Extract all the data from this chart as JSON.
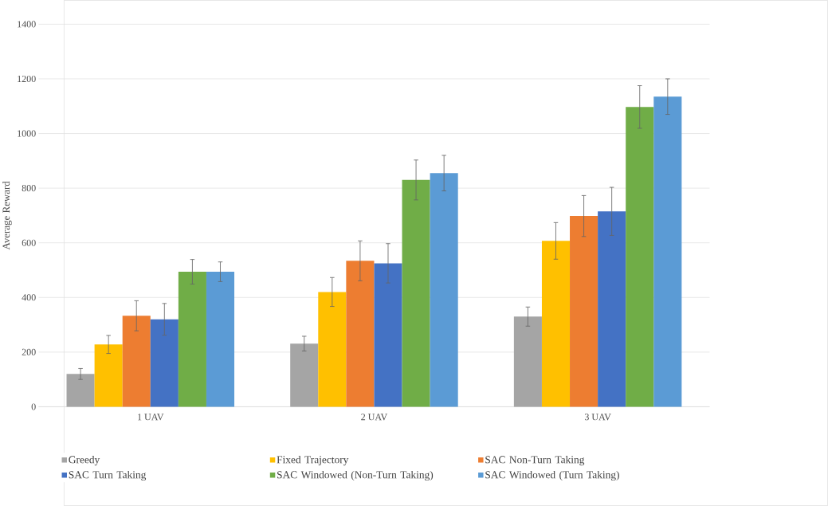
{
  "chart_data": {
    "type": "bar",
    "ylabel": "Average Reward",
    "categories": [
      "1 UAV",
      "2 UAV",
      "3 UAV"
    ],
    "series": [
      {
        "name": "Greedy",
        "color": "#a5a5a5",
        "values": [
          120,
          231,
          330
        ],
        "errors": [
          20,
          27,
          35
        ]
      },
      {
        "name": "Fixed Trajectory",
        "color": "#ffc000",
        "values": [
          228,
          420,
          607
        ],
        "errors": [
          33,
          53,
          67
        ]
      },
      {
        "name": "SAC Non-Turn Taking",
        "color": "#ed7d31",
        "values": [
          333,
          534,
          698
        ],
        "errors": [
          55,
          73,
          75
        ]
      },
      {
        "name": "SAC Turn Taking",
        "color": "#4472c4",
        "values": [
          320,
          525,
          715
        ],
        "errors": [
          58,
          72,
          88
        ]
      },
      {
        "name": "SAC Windowed (Non-Turn Taking)",
        "color": "#70ad47",
        "values": [
          494,
          830,
          1097
        ],
        "errors": [
          45,
          73,
          78
        ]
      },
      {
        "name": "SAC Windowed (Turn Taking)",
        "color": "#5b9bd5",
        "values": [
          494,
          855,
          1135
        ],
        "errors": [
          36,
          65,
          65
        ]
      }
    ],
    "ylim": [
      0,
      1400
    ],
    "yticks": [
      0,
      200,
      400,
      600,
      800,
      1000,
      1200,
      1400
    ],
    "grid": "y",
    "legend": "bottom"
  }
}
